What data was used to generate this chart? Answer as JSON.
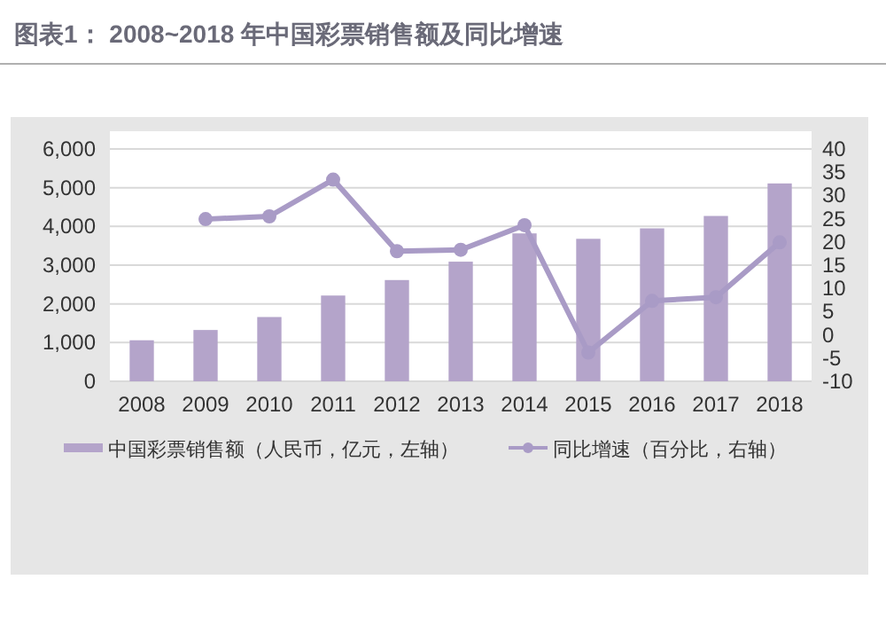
{
  "chart_data": {
    "type": "bar",
    "title": "图表1：  2008~2018 年中国彩票销售额及同比增速",
    "categories": [
      "2008",
      "2009",
      "2010",
      "2011",
      "2012",
      "2013",
      "2014",
      "2015",
      "2016",
      "2017",
      "2018"
    ],
    "series": [
      {
        "name": "中国彩票销售额（人民币，亿元，左轴）",
        "color": "#b4a4ca",
        "values": [
          1060,
          1325,
          1660,
          2215,
          2615,
          3090,
          3820,
          3680,
          3950,
          4270,
          5110
        ]
      },
      {
        "name": "同比增速（百分比，右轴）",
        "type": "line",
        "axis": "y2",
        "color": "#a99bc6",
        "values": [
          null,
          24.9,
          25.5,
          33.4,
          18.0,
          18.3,
          23.6,
          -3.8,
          7.3,
          8.1,
          19.9
        ]
      }
    ],
    "ylim": [
      0,
      6000
    ],
    "yticks": [
      {
        "value": 0,
        "label": "0"
      },
      {
        "value": 1000,
        "label": "1,000"
      },
      {
        "value": 2000,
        "label": "2,000"
      },
      {
        "value": 3000,
        "label": "3,000"
      },
      {
        "value": 4000,
        "label": "4,000"
      },
      {
        "value": 5000,
        "label": "5,000"
      },
      {
        "value": 6000,
        "label": "6,000"
      }
    ],
    "y2lim": [
      -10,
      40
    ],
    "y2ticks": [
      -10,
      -5,
      0,
      5,
      10,
      15,
      20,
      25,
      30,
      35,
      40
    ],
    "grid": "y",
    "legend": "bottom",
    "marker": "circle"
  }
}
